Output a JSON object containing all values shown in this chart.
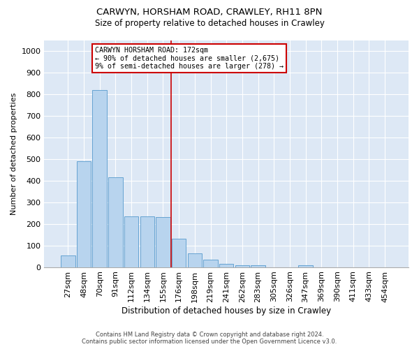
{
  "title1": "CARWYN, HORSHAM ROAD, CRAWLEY, RH11 8PN",
  "title2": "Size of property relative to detached houses in Crawley",
  "xlabel": "Distribution of detached houses by size in Crawley",
  "ylabel": "Number of detached properties",
  "footer1": "Contains HM Land Registry data © Crown copyright and database right 2024.",
  "footer2": "Contains public sector information licensed under the Open Government Licence v3.0.",
  "categories": [
    "27sqm",
    "48sqm",
    "70sqm",
    "91sqm",
    "112sqm",
    "134sqm",
    "155sqm",
    "176sqm",
    "198sqm",
    "219sqm",
    "241sqm",
    "262sqm",
    "283sqm",
    "305sqm",
    "326sqm",
    "347sqm",
    "369sqm",
    "390sqm",
    "411sqm",
    "433sqm",
    "454sqm"
  ],
  "values": [
    55,
    490,
    820,
    415,
    235,
    235,
    230,
    130,
    65,
    35,
    15,
    10,
    10,
    0,
    0,
    10,
    0,
    0,
    0,
    0,
    0
  ],
  "bar_color": "#b8d4ee",
  "bar_edge_color": "#5599cc",
  "bg_color": "#dde8f5",
  "vline_color": "#cc0000",
  "annotation_text": "CARWYN HORSHAM ROAD: 172sqm\n← 90% of detached houses are smaller (2,675)\n9% of semi-detached houses are larger (278) →",
  "annotation_box_facecolor": "white",
  "annotation_box_edgecolor": "#cc0000",
  "ylim": [
    0,
    1050
  ],
  "yticks": [
    0,
    100,
    200,
    300,
    400,
    500,
    600,
    700,
    800,
    900,
    1000
  ]
}
